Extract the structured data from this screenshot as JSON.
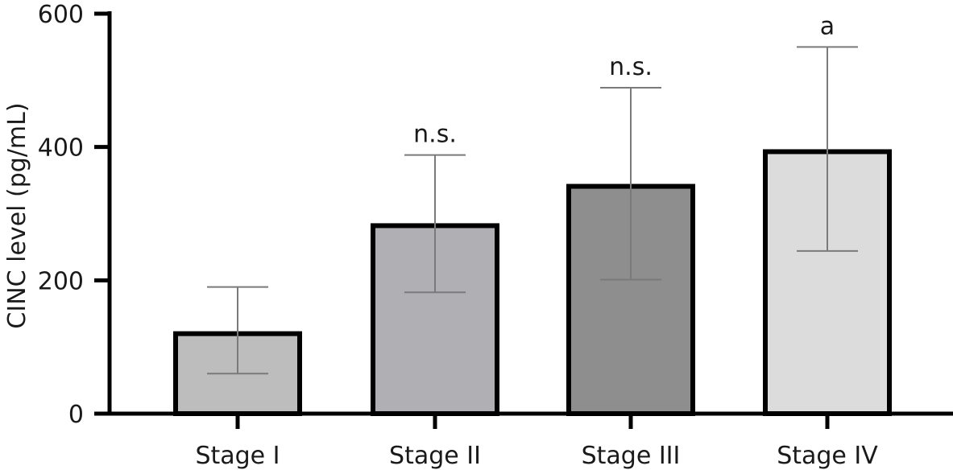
{
  "chart_data": {
    "type": "bar",
    "title": "",
    "xlabel": "",
    "ylabel": "CINC level (pg/mL)",
    "ylim": [
      0,
      600
    ],
    "yticks": [
      0,
      200,
      400,
      600
    ],
    "grid": false,
    "categories": [
      "Stage I",
      "Stage II",
      "Stage III",
      "Stage IV"
    ],
    "values": [
      120,
      282,
      341,
      393
    ],
    "error_low": [
      60,
      182,
      201,
      244
    ],
    "error_high": [
      190,
      388,
      489,
      550
    ],
    "annotations": [
      "",
      "n.s.",
      "n.s.",
      "a"
    ],
    "bar_colors": [
      "#bdbdbd",
      "#b0b0b4",
      "#8e8e8e",
      "#dcdcdc"
    ],
    "bar_edge_color": "#000000",
    "errorbar_color": "#7a7a7a"
  }
}
